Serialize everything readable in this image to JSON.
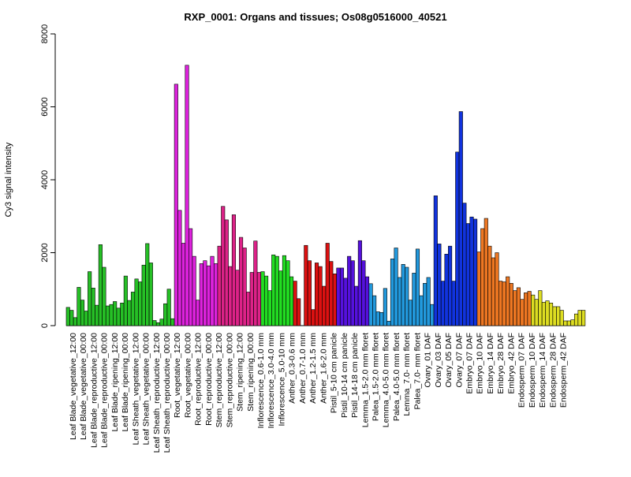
{
  "chart_data": {
    "type": "bar",
    "title": "RXP_0001: Organs and tissues; Os08g0516000_40521",
    "xlabel": "",
    "ylabel": "Cy3 signal intensity",
    "ylim": [
      0,
      8000
    ],
    "yticks": [
      0,
      2000,
      4000,
      6000,
      8000
    ],
    "grid": false,
    "legend": "none",
    "category_labels": [
      "Leaf Blade_vegetative_12:00",
      "Leaf Blade_vegetative_00:00",
      "Leaf Blade_reproductive_12:00",
      "Leaf Blade_reproductive_00:00",
      "Leaf Blade_ripening_12:00",
      "Leaf Blade_ripening_00:00",
      "Leaf Sheath_vegetative_12:00",
      "Leaf Sheath_vegetative_00:00",
      "Leaf Sheath_reproductive_12:00",
      "Leaf Sheath_reproductive_00:00",
      "Root_vegetative_12:00",
      "Root_vegetative_00:00",
      "Root_reproductive_12:00",
      "Root_reproductive_00:00",
      "Stem_reproductive_12:00",
      "Stem_reproductive_00:00",
      "Stem_ripening_12:00",
      "Stem_ripening_00:00",
      "Inflorescence_0.6-1.0 mm",
      "Inflorescence_3.0-4.0 mm",
      "Inflorescence_5.0-10 mm",
      "Anther_0.3-0.6 mm",
      "Anther_0.7-1.0 mm",
      "Anther_1.2-1.5 mm",
      "Anther_1.6-2.0 mm",
      "Pistil_5-10 cm panicle",
      "Pistil_10-14 cm panicle",
      "Pistil_14-18 cm panicle",
      "Lemma_1.5-2.0 mm floret",
      "Palea_1.5-2.0 mm floret",
      "Lemma_4.0-5.0 mm floret",
      "Palea_4.0-5.0 mm floret",
      "Lemma_7.0- mm floret",
      "Palea_7.0- mm floret",
      "Ovary_01 DAF",
      "Ovary_03 DAF",
      "Ovary_05 DAF",
      "Ovary_07 DAF",
      "Embryo_07 DAF",
      "Embryo_10 DAF",
      "Embryo_14 DAF",
      "Embryo_28 DAF",
      "Embryo_42 DAF",
      "Endosperm_07 DAF",
      "Endosperm_10 DAF",
      "Endosperm_14 DAF",
      "Endosperm_28 DAF",
      "Endosperm_42 DAF"
    ],
    "groups": [
      {
        "color": "#26c026",
        "values": [
          500,
          420,
          220
        ]
      },
      {
        "color": "#26c026",
        "values": [
          1050,
          700,
          400
        ]
      },
      {
        "color": "#26c026",
        "values": [
          1480,
          1030,
          560
        ]
      },
      {
        "color": "#26c026",
        "values": [
          2220,
          1600,
          540
        ]
      },
      {
        "color": "#26c026",
        "values": [
          580,
          660,
          480
        ]
      },
      {
        "color": "#26c026",
        "values": [
          620,
          1360,
          690
        ]
      },
      {
        "color": "#26c026",
        "values": [
          920,
          1280,
          1200
        ]
      },
      {
        "color": "#26c026",
        "values": [
          1660,
          2250,
          1720
        ]
      },
      {
        "color": "#26c026",
        "values": [
          140,
          80,
          180
        ]
      },
      {
        "color": "#26c026",
        "values": [
          600,
          1000,
          190
        ]
      },
      {
        "color": "#dd22dd",
        "values": [
          6620,
          3160,
          2260
        ]
      },
      {
        "color": "#dd22dd",
        "values": [
          7140,
          2660,
          1900
        ]
      },
      {
        "color": "#dd22dd",
        "values": [
          700,
          1700,
          1780
        ]
      },
      {
        "color": "#dd22dd",
        "values": [
          1640,
          1900,
          1700
        ]
      },
      {
        "color": "#dd2288",
        "values": [
          2180,
          3270,
          2900
        ]
      },
      {
        "color": "#dd2288",
        "values": [
          1620,
          3040,
          1520
        ]
      },
      {
        "color": "#dd2288",
        "values": [
          2420,
          2130,
          920
        ]
      },
      {
        "color": "#dd2288",
        "values": [
          1460,
          2320,
          1460
        ]
      },
      {
        "color": "#22dd22",
        "values": [
          1480,
          1360,
          960
        ]
      },
      {
        "color": "#22dd22",
        "values": [
          1940,
          1900,
          1500
        ]
      },
      {
        "color": "#22dd22",
        "values": [
          1920,
          1780,
          1340
        ]
      },
      {
        "color": "#dd1111",
        "values": [
          1220,
          740
        ]
      },
      {
        "color": "#dd1111",
        "values": [
          2200,
          1780,
          440
        ]
      },
      {
        "color": "#dd1111",
        "values": [
          1720,
          1620,
          1080
        ]
      },
      {
        "color": "#dd1111",
        "values": [
          2260,
          1760,
          1420
        ]
      },
      {
        "color": "#5511dd",
        "values": [
          1580,
          1580,
          1300
        ]
      },
      {
        "color": "#5511dd",
        "values": [
          1900,
          1780,
          1080
        ]
      },
      {
        "color": "#5511dd",
        "values": [
          2330,
          1780,
          1340
        ]
      },
      {
        "color": "#2299dd",
        "values": [
          1150,
          820,
          380
        ]
      },
      {
        "color": "#2299dd",
        "values": [
          360,
          1020,
          120
        ]
      },
      {
        "color": "#2299dd",
        "values": [
          1830,
          2130,
          1320
        ]
      },
      {
        "color": "#2299dd",
        "values": [
          1680,
          1600,
          700
        ]
      },
      {
        "color": "#2299dd",
        "values": [
          1440,
          2100,
          820
        ]
      },
      {
        "color": "#2299dd",
        "values": [
          1160,
          1320,
          580
        ]
      },
      {
        "color": "#1133dd",
        "values": [
          3560,
          2240,
          1220
        ]
      },
      {
        "color": "#1133dd",
        "values": [
          1960,
          2180,
          1220
        ]
      },
      {
        "color": "#1133dd",
        "values": [
          4760,
          5870,
          3360
        ]
      },
      {
        "color": "#1133dd",
        "values": [
          2800,
          2980,
          2920
        ]
      },
      {
        "color": "#ee7722",
        "values": [
          2020,
          2660,
          2940
        ]
      },
      {
        "color": "#ee7722",
        "values": [
          2180,
          1860,
          2000
        ]
      },
      {
        "color": "#ee7722",
        "values": [
          1220,
          1200,
          1340
        ]
      },
      {
        "color": "#ee7722",
        "values": [
          1160,
          960,
          1040
        ]
      },
      {
        "color": "#ee7722",
        "values": [
          720,
          900,
          940
        ]
      },
      {
        "color": "#dddd22",
        "values": [
          840,
          720,
          960
        ]
      },
      {
        "color": "#dddd22",
        "values": [
          640,
          680,
          620
        ]
      },
      {
        "color": "#dddd22",
        "values": [
          520,
          520,
          420
        ]
      },
      {
        "color": "#dddd22",
        "values": [
          130,
          130,
          160
        ]
      },
      {
        "color": "#dddd22",
        "values": [
          320,
          420,
          420
        ]
      }
    ]
  }
}
